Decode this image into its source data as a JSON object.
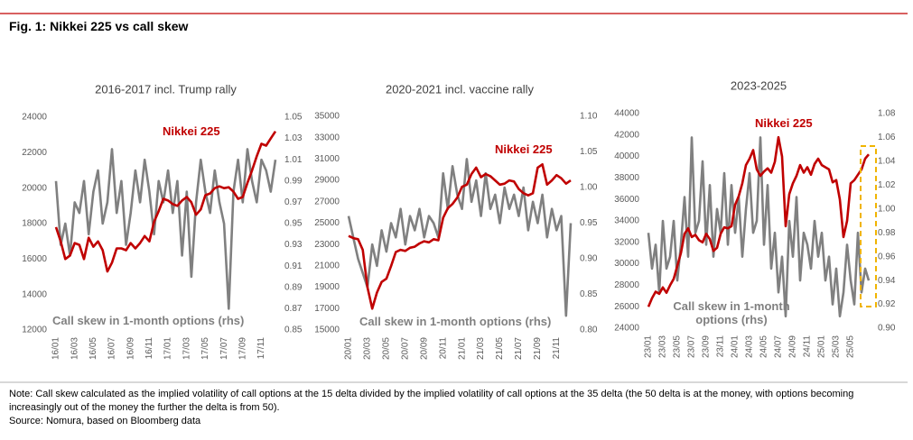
{
  "header": {
    "title": "Fig. 1: Nikkei 225 vs call skew"
  },
  "footer": {
    "note": "Note: Call skew calculated as the implied volatility of call options at the 15 delta divided by the implied volatility of call options at the 35 delta (the 50 delta is at the money, with options becoming increasingly out of the money the further the delta is from 50).",
    "source": "Source: Nomura, based on Bloomberg data"
  },
  "chart_data": [
    {
      "type": "line",
      "title": "2016-2017 incl. Trump rally",
      "categories": [
        "16/01",
        null,
        null,
        null,
        "16/03",
        null,
        null,
        null,
        "16/05",
        null,
        null,
        null,
        "16/07",
        null,
        null,
        null,
        "16/09",
        null,
        null,
        null,
        "16/11",
        null,
        null,
        null,
        "17/01",
        null,
        null,
        null,
        "17/03",
        null,
        null,
        null,
        "17/05",
        null,
        null,
        null,
        "17/07",
        null,
        null,
        null,
        "17/09",
        null,
        null,
        null,
        "17/11",
        null,
        null,
        null
      ],
      "series": [
        {
          "name": "Nikkei 225",
          "color": "#c00000",
          "axis": "y",
          "values": [
            17800,
            17000,
            16000,
            16200,
            16900,
            16800,
            16000,
            17200,
            16700,
            17000,
            16500,
            15300,
            15800,
            16600,
            16600,
            16500,
            16900,
            16600,
            16900,
            17300,
            17000,
            18100,
            18700,
            19400,
            19300,
            19100,
            19000,
            19300,
            19500,
            19200,
            18500,
            18800,
            19600,
            19700,
            20000,
            20100,
            20000,
            20050,
            19800,
            19400,
            19500,
            20300,
            21000,
            21800,
            22500,
            22400,
            22800,
            23200
          ]
        },
        {
          "name": "Call skew in 1-month options (rhs)",
          "color": "#808080",
          "axis": "y2",
          "values": [
            0.99,
            0.93,
            0.95,
            0.92,
            0.97,
            0.96,
            0.99,
            0.94,
            0.98,
            1.0,
            0.95,
            0.97,
            1.02,
            0.96,
            0.99,
            0.93,
            0.96,
            1.0,
            0.97,
            1.01,
            0.98,
            0.94,
            0.99,
            0.97,
            1.0,
            0.96,
            0.99,
            0.92,
            0.98,
            0.9,
            0.97,
            1.01,
            0.98,
            0.96,
            1.0,
            0.97,
            0.95,
            0.87,
            0.98,
            1.01,
            0.97,
            1.02,
            0.99,
            0.97,
            1.01,
            1.0,
            0.98,
            1.01
          ]
        }
      ],
      "ylim": [
        12000,
        24000
      ],
      "yticks": [
        12000,
        14000,
        16000,
        18000,
        20000,
        22000,
        24000
      ],
      "y2lim": [
        0.85,
        1.05
      ],
      "y2ticks": [
        0.85,
        0.87,
        0.89,
        0.91,
        0.93,
        0.95,
        0.97,
        0.99,
        1.01,
        1.03,
        1.05
      ]
    },
    {
      "type": "line",
      "title": "2020-2021 incl. vaccine rally",
      "categories": [
        "20/01",
        null,
        null,
        null,
        "20/03",
        null,
        null,
        null,
        "20/05",
        null,
        null,
        null,
        "20/07",
        null,
        null,
        null,
        "20/09",
        null,
        null,
        null,
        "20/11",
        null,
        null,
        null,
        "21/01",
        null,
        null,
        null,
        "21/03",
        null,
        null,
        null,
        "21/05",
        null,
        null,
        null,
        "21/07",
        null,
        null,
        null,
        "21/09",
        null,
        null,
        null,
        "21/11",
        null,
        null,
        null
      ],
      "series": [
        {
          "name": "Nikkei 225",
          "color": "#c00000",
          "axis": "y",
          "values": [
            23800,
            23600,
            23500,
            22500,
            19000,
            17000,
            18500,
            19500,
            19800,
            21000,
            22300,
            22500,
            22400,
            22700,
            22800,
            23100,
            23300,
            23200,
            23500,
            23400,
            25500,
            26400,
            26800,
            27400,
            28400,
            28600,
            29600,
            30200,
            29300,
            29600,
            29400,
            29000,
            28600,
            28700,
            29000,
            28900,
            28200,
            27800,
            27600,
            27800,
            30200,
            30500,
            28600,
            29000,
            29500,
            29200,
            28700,
            29000
          ]
        },
        {
          "name": "Call skew in 1-month options (rhs)",
          "color": "#808080",
          "axis": "y2",
          "values": [
            0.96,
            0.93,
            0.9,
            0.88,
            0.86,
            0.92,
            0.89,
            0.94,
            0.91,
            0.95,
            0.93,
            0.97,
            0.92,
            0.96,
            0.94,
            0.97,
            0.93,
            0.96,
            0.95,
            0.93,
            1.02,
            0.97,
            1.03,
            0.99,
            0.97,
            1.04,
            0.98,
            1.01,
            0.96,
            1.02,
            0.97,
            0.99,
            0.95,
            1.0,
            0.97,
            0.99,
            0.96,
            1.0,
            0.94,
            0.98,
            0.95,
            0.99,
            0.93,
            0.97,
            0.94,
            0.96,
            0.82,
            0.95
          ]
        }
      ],
      "ylim": [
        15000,
        35000
      ],
      "yticks": [
        15000,
        17000,
        19000,
        21000,
        23000,
        25000,
        27000,
        29000,
        31000,
        33000,
        35000
      ],
      "y2lim": [
        0.8,
        1.1
      ],
      "y2ticks": [
        {
          "value": 0.8,
          "label": "0.80"
        },
        0.85,
        {
          "value": 0.9,
          "label": "0.90"
        },
        0.95,
        {
          "value": 1.0,
          "label": "1.00"
        },
        1.05,
        {
          "value": 1.1,
          "label": "1.10"
        }
      ]
    },
    {
      "type": "line",
      "title": "2023-2025",
      "categories": [
        "23/01",
        null,
        null,
        null,
        "23/03",
        null,
        null,
        null,
        "23/05",
        null,
        null,
        null,
        "23/07",
        null,
        null,
        null,
        "23/09",
        null,
        null,
        null,
        "23/11",
        null,
        null,
        null,
        "24/01",
        null,
        null,
        null,
        "24/03",
        null,
        null,
        null,
        "24/05",
        null,
        null,
        null,
        "24/07",
        null,
        null,
        null,
        "24/09",
        null,
        null,
        null,
        "24/11",
        null,
        null,
        null,
        "25/01",
        null,
        null,
        null,
        "25/03",
        null,
        null,
        null,
        "25/05",
        null,
        null,
        null,
        null,
        null
      ],
      "series": [
        {
          "name": "Nikkei 225",
          "color": "#c00000",
          "axis": "y",
          "values": [
            26000,
            26800,
            27400,
            27200,
            27800,
            27300,
            28000,
            28600,
            29800,
            31000,
            32800,
            33300,
            32500,
            32700,
            32200,
            32000,
            32800,
            32300,
            31200,
            31500,
            32800,
            33400,
            33300,
            33500,
            35500,
            36300,
            37500,
            39200,
            39800,
            40600,
            38800,
            38200,
            38600,
            38900,
            38500,
            39500,
            41800,
            40000,
            33500,
            36500,
            37500,
            38200,
            39200,
            38500,
            39000,
            38300,
            39300,
            39800,
            39200,
            39000,
            38800,
            37600,
            37800,
            36000,
            32500,
            34000,
            37500,
            37800,
            38300,
            38800,
            39800,
            40200
          ]
        },
        {
          "name": "Call skew in 1-month options (rhs)",
          "color": "#808080",
          "axis": "y2",
          "values": [
            0.98,
            0.95,
            0.97,
            0.93,
            0.99,
            0.95,
            0.96,
            0.99,
            0.94,
            0.97,
            1.01,
            0.96,
            1.06,
            0.98,
            0.99,
            1.04,
            0.97,
            1.02,
            0.96,
            1.0,
            0.98,
            1.03,
            0.97,
            1.02,
            0.98,
            1.01,
            0.96,
            1.0,
            1.03,
            0.98,
            0.99,
            1.06,
            0.97,
            1.02,
            0.95,
            0.98,
            0.93,
            0.96,
            0.91,
            0.99,
            0.96,
            1.01,
            0.94,
            0.98,
            0.97,
            0.95,
            0.99,
            0.96,
            0.98,
            0.94,
            0.96,
            0.92,
            0.95,
            0.91,
            0.93,
            0.97,
            0.94,
            0.92,
            0.98,
            0.93,
            0.95,
            0.94
          ]
        }
      ],
      "ylim": [
        24000,
        44000
      ],
      "yticks": [
        24000,
        26000,
        28000,
        30000,
        32000,
        34000,
        36000,
        38000,
        40000,
        42000,
        44000
      ],
      "y2lim": [
        0.9,
        1.08
      ],
      "y2ticks": [
        {
          "value": 0.9,
          "label": "0.90"
        },
        0.92,
        0.94,
        0.96,
        0.98,
        {
          "value": 1.0,
          "label": "1.00"
        },
        1.02,
        1.04,
        1.06,
        1.08
      ]
    }
  ]
}
